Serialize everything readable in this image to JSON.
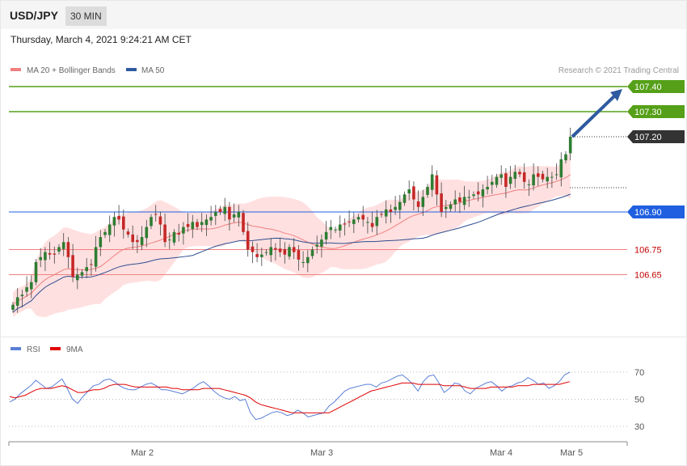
{
  "header": {
    "symbol": "USD/JPY",
    "timeframe": "30 MIN",
    "datetime": "Thursday, March 4, 2021 9:24:21 AM CET"
  },
  "copyright": "Research © 2021 Trading Central",
  "colors": {
    "up_candle": "#2e7d32",
    "down_candle": "#c62828",
    "resistance": "#55a018",
    "pivot": "#1f5fe0",
    "support": "#f08080",
    "last_price": "#333333",
    "ma20_band": "#ffd6d6",
    "ma50": "#2e4d8f",
    "rsi": "#5b7fd6",
    "rsi_ma": "#e00000",
    "arrow": "#2e5aa0"
  },
  "chart_data": [
    {
      "type": "candlestick",
      "panel": "price",
      "y_range": [
        106.44,
        107.49
      ],
      "legend": [
        {
          "name": "MA 20 + Bollinger Bands",
          "color": "#f08080"
        },
        {
          "name": "MA 50",
          "color": "#2e5a9f"
        }
      ],
      "levels": [
        {
          "value": 107.4,
          "label": "107.40",
          "kind": "resistance"
        },
        {
          "value": 107.3,
          "label": "107.30",
          "kind": "resistance"
        },
        {
          "value": 107.2,
          "label": "107.20",
          "kind": "last"
        },
        {
          "value": 106.9,
          "label": "106.90",
          "kind": "pivot"
        },
        {
          "value": 106.75,
          "label": "106.75",
          "kind": "support"
        },
        {
          "value": 106.65,
          "label": "106.65",
          "kind": "support"
        }
      ],
      "forecast_arrow": {
        "from": 107.2,
        "to": 107.4
      },
      "x_labels": [
        "Mar 2",
        "Mar 3",
        "Mar 4",
        "Mar 5"
      ],
      "closes": [
        106.53,
        106.56,
        106.57,
        106.6,
        106.62,
        106.7,
        106.72,
        106.74,
        106.73,
        106.73,
        106.76,
        106.78,
        106.72,
        106.64,
        106.65,
        106.66,
        106.68,
        106.69,
        106.76,
        106.8,
        106.82,
        106.85,
        106.88,
        106.87,
        106.83,
        106.81,
        106.78,
        106.78,
        106.8,
        106.84,
        106.88,
        106.89,
        106.85,
        106.78,
        106.79,
        106.82,
        106.81,
        106.84,
        106.84,
        106.86,
        106.84,
        106.86,
        106.87,
        106.88,
        106.9,
        106.9,
        106.92,
        106.87,
        106.89,
        106.9,
        106.82,
        106.75,
        106.74,
        106.72,
        106.73,
        106.74,
        106.76,
        106.75,
        106.74,
        106.73,
        106.76,
        106.74,
        106.71,
        106.7,
        106.72,
        106.75,
        106.77,
        106.79,
        106.82,
        106.84,
        106.83,
        106.85,
        106.85,
        106.86,
        106.87,
        106.88,
        106.87,
        106.86,
        106.84,
        106.88,
        106.89,
        106.91,
        106.9,
        106.92,
        106.94,
        106.97,
        106.99,
        106.95,
        106.92,
        106.96,
        107.0,
        107.05,
        106.97,
        106.9,
        106.92,
        106.93,
        106.95,
        106.94,
        106.96,
        106.96,
        106.97,
        106.97,
        106.99,
        107.0,
        107.02,
        107.04,
        107.05,
        107.0,
        107.04,
        107.06,
        107.05,
        107.02,
        107.01,
        107.05,
        107.04,
        107.03,
        107.04,
        107.04,
        107.05,
        107.11,
        107.13,
        107.2
      ]
    },
    {
      "type": "line",
      "panel": "rsi",
      "y_ticks": [
        30,
        50,
        70
      ],
      "y_range": [
        27,
        73
      ],
      "legend": [
        {
          "name": "RSI",
          "color": "#5b7fd6"
        },
        {
          "name": "9MA",
          "color": "#e00000"
        }
      ],
      "series": [
        {
          "name": "RSI",
          "values": [
            48,
            50,
            54,
            57,
            60,
            64,
            61,
            58,
            59,
            62,
            65,
            58,
            50,
            47,
            52,
            56,
            60,
            61,
            64,
            65,
            63,
            60,
            58,
            57,
            57,
            59,
            61,
            62,
            60,
            57,
            57,
            56,
            55,
            54,
            56,
            58,
            61,
            63,
            60,
            56,
            53,
            51,
            50,
            52,
            49,
            50,
            40,
            35,
            36,
            38,
            40,
            41,
            40,
            38,
            39,
            42,
            40,
            37,
            38,
            39,
            40,
            45,
            48,
            52,
            56,
            58,
            59,
            60,
            61,
            61,
            59,
            62,
            63,
            65,
            67,
            68,
            65,
            61,
            56,
            63,
            67,
            68,
            62,
            55,
            58,
            62,
            61,
            56,
            54,
            58,
            60,
            62,
            63,
            60,
            56,
            59,
            60,
            62,
            63,
            66,
            64,
            61,
            62,
            58,
            60,
            63,
            68,
            70
          ]
        },
        {
          "name": "9MA",
          "values": [
            52,
            51,
            52,
            53,
            55,
            57,
            58,
            58,
            58,
            59,
            60,
            59,
            57,
            55,
            55,
            56,
            57,
            57,
            58,
            60,
            61,
            61,
            61,
            60,
            59,
            59,
            59,
            59,
            59,
            59,
            59,
            58,
            58,
            57,
            57,
            57,
            57,
            58,
            58,
            58,
            58,
            57,
            56,
            55,
            54,
            53,
            51,
            48,
            46,
            45,
            44,
            43,
            42,
            41,
            40,
            40,
            40,
            40,
            40,
            40,
            40,
            40,
            42,
            44,
            46,
            48,
            50,
            52,
            54,
            56,
            57,
            58,
            59,
            60,
            61,
            62,
            62,
            62,
            61,
            61,
            61,
            61,
            61,
            60,
            60,
            60,
            60,
            59,
            58,
            58,
            58,
            58,
            59,
            59,
            59,
            59,
            59,
            60,
            60,
            60,
            61,
            61,
            61,
            61,
            61,
            61,
            62,
            63
          ]
        }
      ]
    }
  ]
}
